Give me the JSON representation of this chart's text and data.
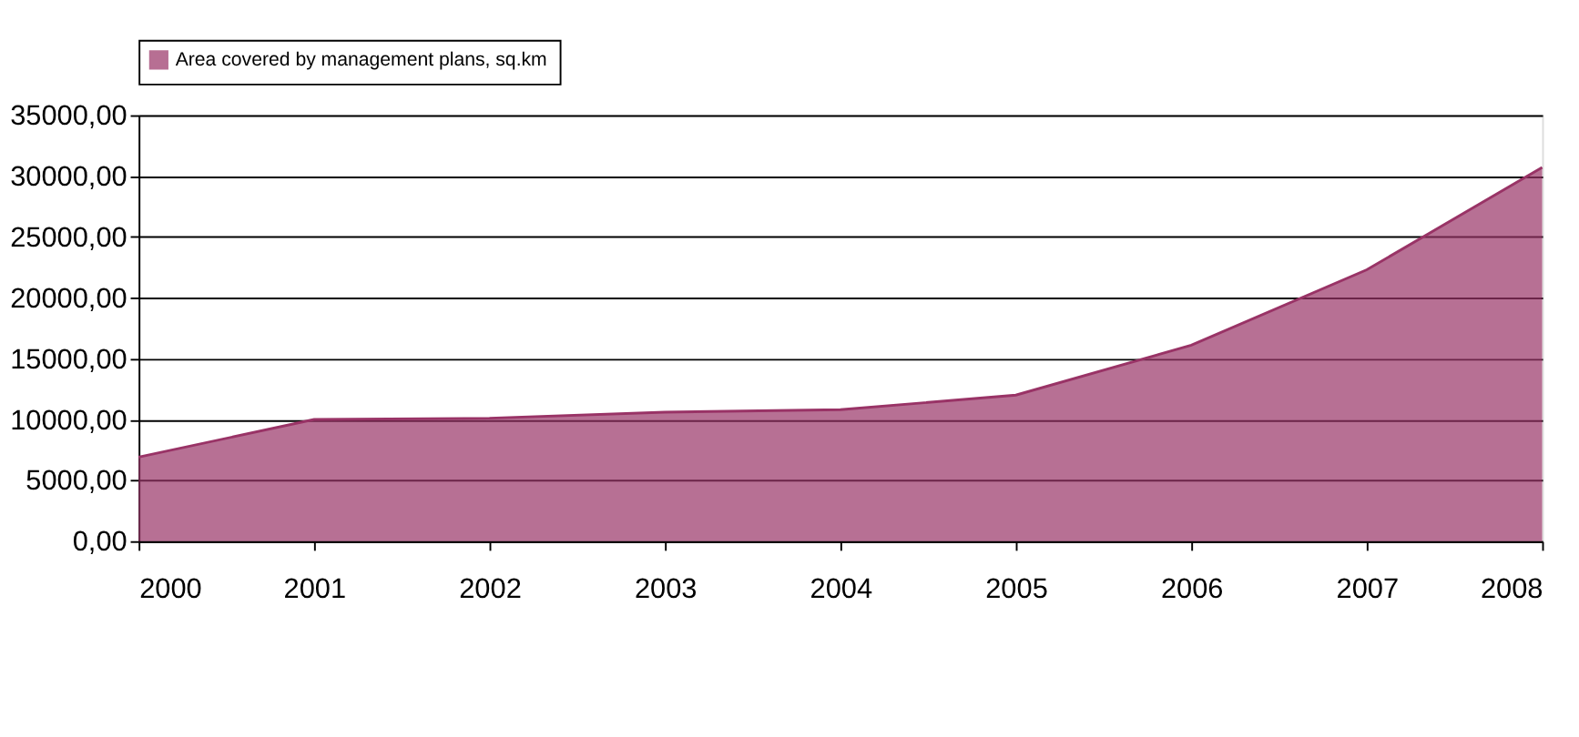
{
  "chart_data": {
    "type": "area",
    "x": [
      2000,
      2001,
      2002,
      2003,
      2004,
      2005,
      2006,
      2007,
      2008
    ],
    "series": [
      {
        "name": "Area covered by management plans, sq.km",
        "color": "#993366",
        "values": [
          6900,
          10000,
          10100,
          10600,
          10800,
          12000,
          16100,
          22300,
          30700
        ]
      }
    ],
    "xlim": [
      2000,
      2008
    ],
    "xticks": [
      2000,
      2001,
      2002,
      2003,
      2004,
      2005,
      2006,
      2007,
      2008
    ],
    "ylim": [
      0,
      35000
    ],
    "yticks": [
      {
        "value": 0,
        "label": "0,00"
      },
      {
        "value": 5000,
        "label": "5000,00"
      },
      {
        "value": 10000,
        "label": "10000,00"
      },
      {
        "value": 15000,
        "label": "15000,00"
      },
      {
        "value": 20000,
        "label": "20000,00"
      },
      {
        "value": 25000,
        "label": "25000,00"
      },
      {
        "value": 30000,
        "label": "30000,00"
      },
      {
        "value": 35000,
        "label": "35000,00"
      }
    ],
    "grid": "y",
    "legend": "top"
  }
}
